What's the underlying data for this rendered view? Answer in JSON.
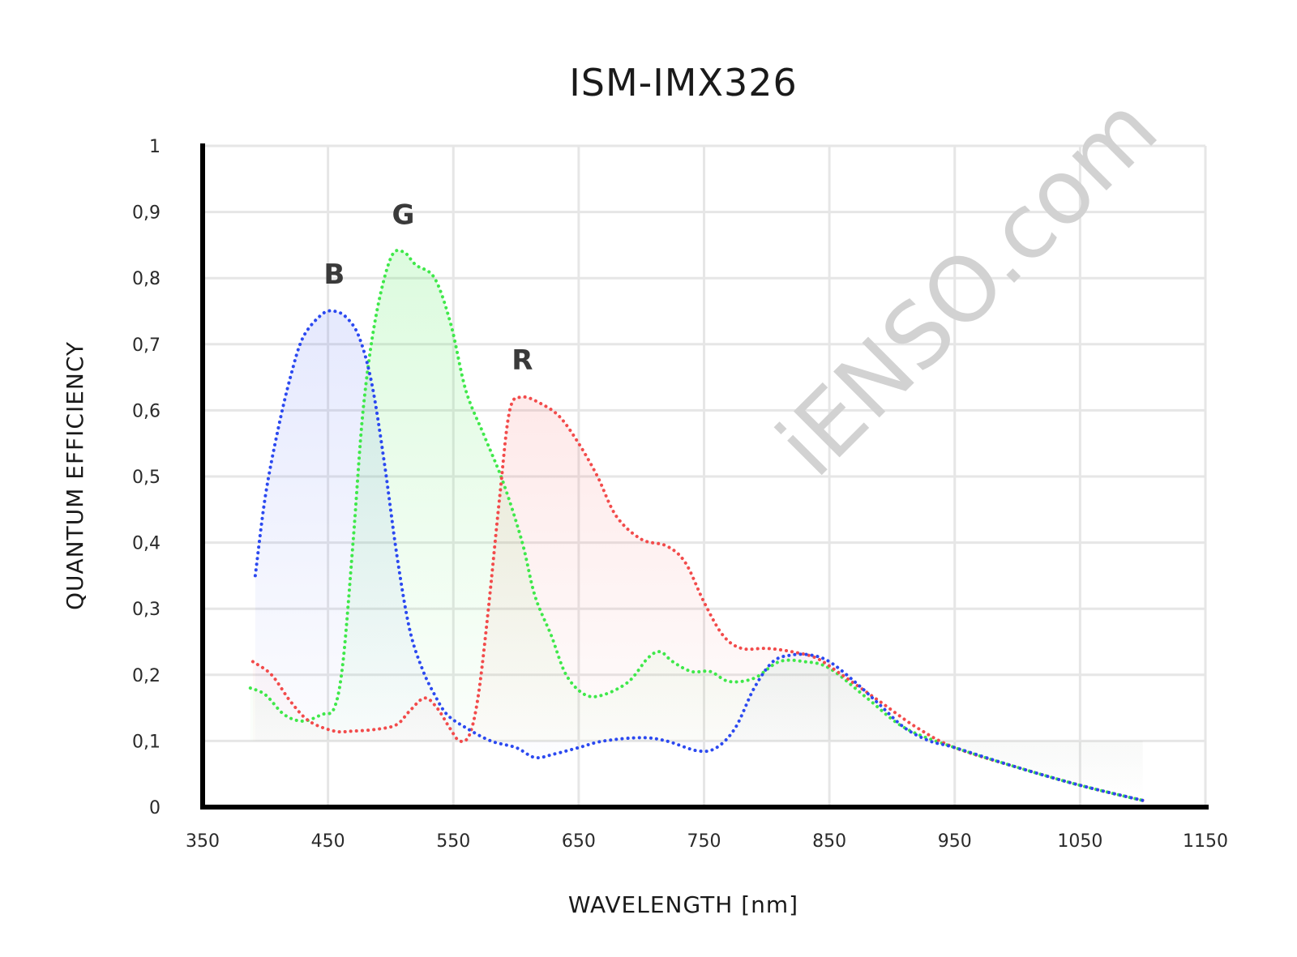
{
  "chart_data": {
    "type": "line",
    "title": "ISM-IMX326",
    "xlabel": "WAVELENGTH [nm]",
    "ylabel": "QUANTUM EFFICIENCY",
    "xlim": [
      350,
      1150
    ],
    "ylim": [
      0,
      1
    ],
    "x_ticks": [
      "350",
      "450",
      "550",
      "650",
      "750",
      "850",
      "950",
      "1050",
      "1150"
    ],
    "y_ticks": [
      "0",
      "0,1",
      "0,2",
      "0,3",
      "0,4",
      "0,5",
      "0,6",
      "0,7",
      "0,8",
      "0,9",
      "1"
    ],
    "grid": true,
    "watermark": "iENSO.com",
    "series": [
      {
        "name": "B",
        "color": "#2b49f0",
        "points": [
          [
            392,
            0.35
          ],
          [
            400,
            0.47
          ],
          [
            410,
            0.57
          ],
          [
            420,
            0.65
          ],
          [
            430,
            0.71
          ],
          [
            445,
            0.745
          ],
          [
            455,
            0.75
          ],
          [
            465,
            0.74
          ],
          [
            475,
            0.71
          ],
          [
            485,
            0.64
          ],
          [
            495,
            0.52
          ],
          [
            505,
            0.38
          ],
          [
            515,
            0.27
          ],
          [
            525,
            0.21
          ],
          [
            535,
            0.17
          ],
          [
            545,
            0.14
          ],
          [
            560,
            0.12
          ],
          [
            580,
            0.1
          ],
          [
            600,
            0.09
          ],
          [
            615,
            0.075
          ],
          [
            630,
            0.08
          ],
          [
            650,
            0.09
          ],
          [
            670,
            0.1
          ],
          [
            700,
            0.105
          ],
          [
            720,
            0.1
          ],
          [
            745,
            0.085
          ],
          [
            760,
            0.09
          ],
          [
            775,
            0.12
          ],
          [
            790,
            0.18
          ],
          [
            805,
            0.22
          ],
          [
            820,
            0.23
          ],
          [
            835,
            0.23
          ],
          [
            850,
            0.22
          ],
          [
            870,
            0.19
          ],
          [
            890,
            0.155
          ],
          [
            910,
            0.12
          ],
          [
            930,
            0.1
          ],
          [
            950,
            0.09
          ],
          [
            1000,
            0.06
          ],
          [
            1050,
            0.033
          ],
          [
            1100,
            0.01
          ]
        ]
      },
      {
        "name": "G",
        "color": "#3fe84a",
        "points": [
          [
            388,
            0.18
          ],
          [
            400,
            0.17
          ],
          [
            415,
            0.14
          ],
          [
            430,
            0.13
          ],
          [
            445,
            0.14
          ],
          [
            455,
            0.15
          ],
          [
            462,
            0.22
          ],
          [
            470,
            0.4
          ],
          [
            478,
            0.6
          ],
          [
            488,
            0.74
          ],
          [
            500,
            0.83
          ],
          [
            510,
            0.84
          ],
          [
            520,
            0.82
          ],
          [
            535,
            0.8
          ],
          [
            548,
            0.73
          ],
          [
            560,
            0.63
          ],
          [
            575,
            0.56
          ],
          [
            590,
            0.49
          ],
          [
            605,
            0.4
          ],
          [
            615,
            0.32
          ],
          [
            628,
            0.26
          ],
          [
            640,
            0.2
          ],
          [
            655,
            0.17
          ],
          [
            670,
            0.17
          ],
          [
            690,
            0.19
          ],
          [
            705,
            0.225
          ],
          [
            715,
            0.235
          ],
          [
            725,
            0.22
          ],
          [
            740,
            0.205
          ],
          [
            755,
            0.205
          ],
          [
            770,
            0.19
          ],
          [
            790,
            0.195
          ],
          [
            810,
            0.22
          ],
          [
            830,
            0.22
          ],
          [
            850,
            0.21
          ],
          [
            880,
            0.165
          ],
          [
            910,
            0.12
          ],
          [
            950,
            0.09
          ],
          [
            1000,
            0.06
          ],
          [
            1050,
            0.033
          ],
          [
            1100,
            0.01
          ]
        ]
      },
      {
        "name": "R",
        "color": "#f24b4b",
        "points": [
          [
            390,
            0.22
          ],
          [
            405,
            0.2
          ],
          [
            420,
            0.16
          ],
          [
            435,
            0.13
          ],
          [
            455,
            0.115
          ],
          [
            470,
            0.115
          ],
          [
            490,
            0.118
          ],
          [
            505,
            0.125
          ],
          [
            515,
            0.145
          ],
          [
            527,
            0.165
          ],
          [
            537,
            0.15
          ],
          [
            547,
            0.12
          ],
          [
            555,
            0.1
          ],
          [
            563,
            0.11
          ],
          [
            570,
            0.17
          ],
          [
            578,
            0.3
          ],
          [
            587,
            0.47
          ],
          [
            595,
            0.6
          ],
          [
            605,
            0.62
          ],
          [
            620,
            0.61
          ],
          [
            635,
            0.59
          ],
          [
            650,
            0.55
          ],
          [
            665,
            0.5
          ],
          [
            680,
            0.44
          ],
          [
            700,
            0.405
          ],
          [
            720,
            0.395
          ],
          [
            735,
            0.37
          ],
          [
            750,
            0.31
          ],
          [
            765,
            0.26
          ],
          [
            780,
            0.24
          ],
          [
            800,
            0.24
          ],
          [
            820,
            0.235
          ],
          [
            840,
            0.225
          ],
          [
            860,
            0.2
          ],
          [
            890,
            0.16
          ],
          [
            920,
            0.12
          ],
          [
            950,
            0.09
          ],
          [
            1000,
            0.06
          ],
          [
            1050,
            0.033
          ],
          [
            1100,
            0.01
          ]
        ]
      }
    ]
  }
}
